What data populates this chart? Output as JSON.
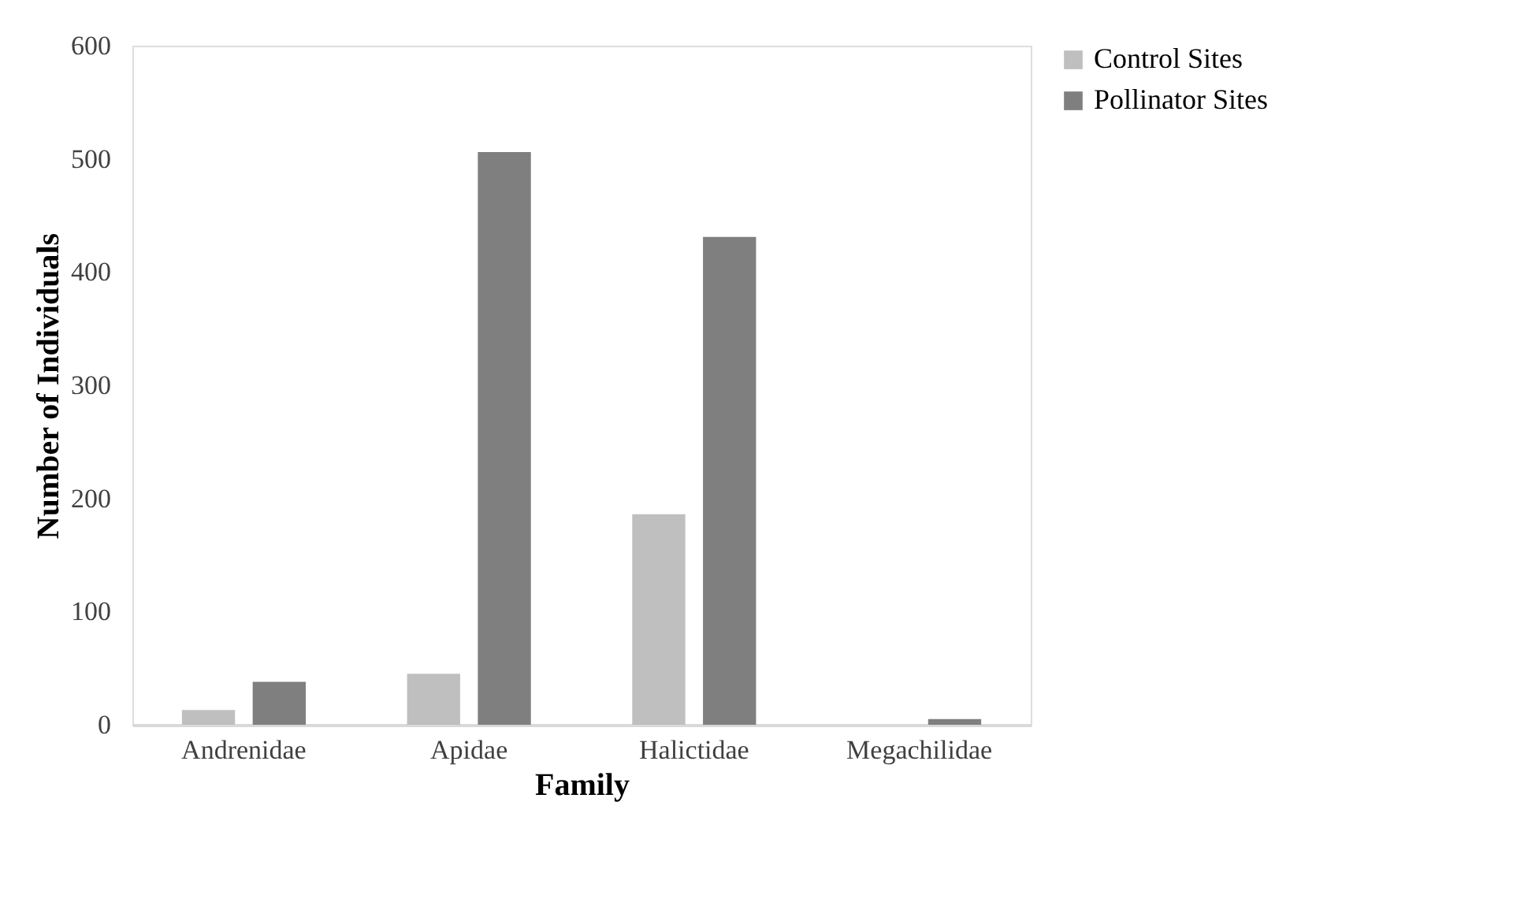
{
  "chart_data": {
    "type": "bar",
    "xlabel": "Family",
    "ylabel": "Number of Individuals",
    "categories": [
      "Andrenidae",
      "Apidae",
      "Halictidae",
      "Megachilidae"
    ],
    "series": [
      {
        "name": "Control Sites",
        "color": "#bfbfbf",
        "values": [
          13,
          45,
          186,
          null
        ]
      },
      {
        "name": "Pollinator Sites",
        "color": "#7f7f7f",
        "values": [
          38,
          506,
          431,
          5
        ]
      }
    ],
    "ylim": [
      0,
      600
    ],
    "yticks": [
      0,
      100,
      200,
      300,
      400,
      500,
      600
    ],
    "grid": false,
    "legend": "right"
  }
}
